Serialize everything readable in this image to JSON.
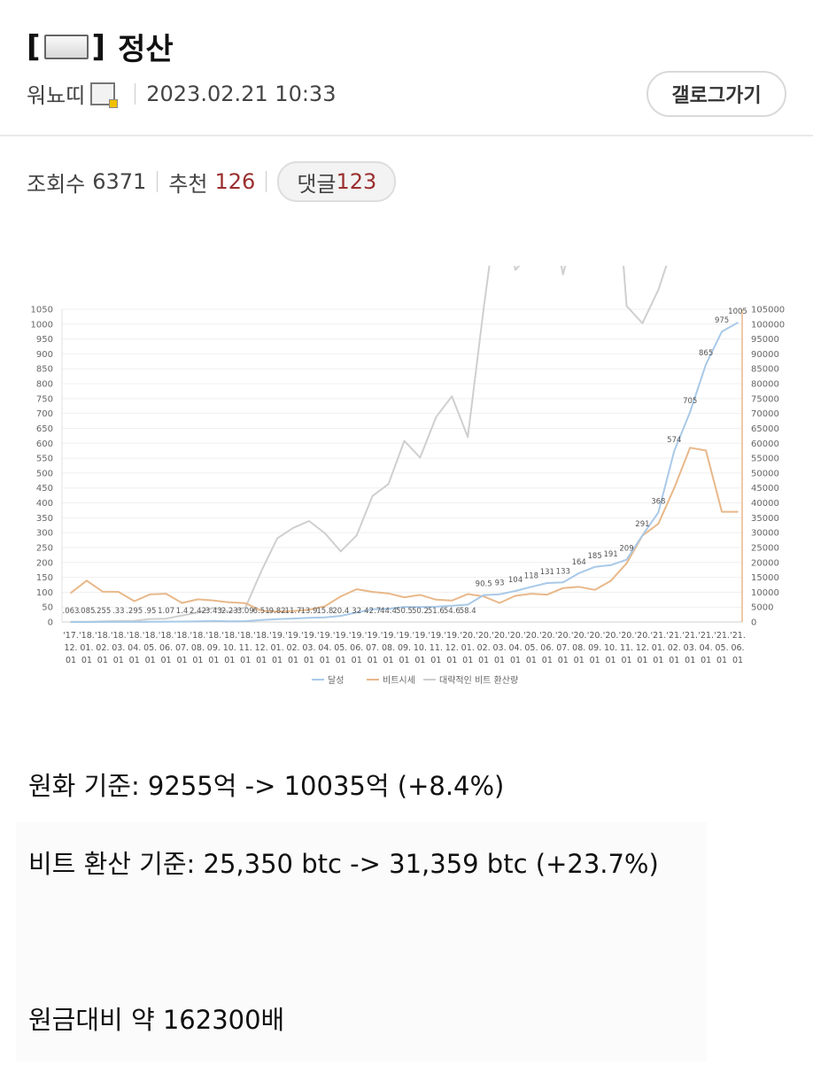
{
  "post": {
    "title": "정산",
    "bracket_open": "[",
    "bracket_close": "]",
    "author": "워뇨띠",
    "datetime": "2023.02.21 10:33",
    "gallery_button": "갤로그가기",
    "views_label": "조회수",
    "views": "6371",
    "recommend_label": "추천",
    "recommend": "126",
    "comments_label": "댓글",
    "comments": "123"
  },
  "chart_data": {
    "type": "line",
    "title": "",
    "y_left": [
      0,
      1050
    ],
    "y_right": [
      0,
      105000
    ],
    "left_ticks": [
      "1050",
      "1000",
      "950",
      "900",
      "850",
      "800",
      "750",
      "700",
      "650",
      "600",
      "550",
      "500",
      "450",
      "400",
      "350",
      "300",
      "250",
      "200",
      "150",
      "100",
      "50",
      "0"
    ],
    "right_ticks": [
      "105000",
      "100000",
      "95000",
      "90000",
      "85000",
      "80000",
      "75000",
      "70000",
      "65000",
      "60000",
      "55000",
      "50000",
      "45000",
      "40000",
      "35000",
      "30000",
      "25000",
      "20000",
      "15000",
      "10000",
      "5000",
      "0"
    ],
    "x_top": [
      "'17.",
      "'18.",
      "'18.",
      "'18.",
      "'18.",
      "'18.",
      "'18.",
      "'18.",
      "'18.",
      "'18.",
      "'18.",
      "'18.",
      "'18.",
      "'19.",
      "'19.",
      "'19.",
      "'19.",
      "'19.",
      "'19.",
      "'19.",
      "'19.",
      "'19.",
      "'19.",
      "'19.",
      "'19.",
      "'20.",
      "'20.",
      "'20.",
      "'20.",
      "'20.",
      "'20.",
      "'20.",
      "'20.",
      "'20.",
      "'20.",
      "'20.",
      "'20.",
      "'21.",
      "'21.",
      "'21.",
      "'21.",
      "'21.",
      "'21."
    ],
    "x_mid": [
      "12.",
      "01.",
      "02.",
      "03.",
      "04.",
      "05.",
      "06.",
      "07.",
      "08.",
      "09.",
      "10.",
      "11.",
      "12.",
      "01.",
      "02.",
      "03.",
      "04.",
      "05.",
      "06.",
      "07.",
      "08.",
      "09.",
      "10.",
      "11.",
      "12.",
      "01.",
      "02.",
      "03.",
      "04.",
      "05.",
      "06.",
      "07.",
      "08.",
      "09.",
      "10.",
      "11.",
      "12.",
      "01.",
      "02.",
      "03.",
      "04.",
      "05.",
      "06."
    ],
    "x_bot": [
      "01",
      "01",
      "01",
      "01",
      "01",
      "01",
      "01",
      "01",
      "01",
      "01",
      "01",
      "01",
      "01",
      "01",
      "01",
      "01",
      "01",
      "01",
      "01",
      "01",
      "01",
      "01",
      "01",
      "01",
      "01",
      "01",
      "01",
      "01",
      "01",
      "01",
      "01",
      "01",
      "01",
      "01",
      "01",
      "01",
      "01",
      "01",
      "01",
      "01",
      "01",
      "01",
      "01"
    ],
    "series": [
      {
        "name": "달성",
        "axis": "left",
        "color": "#a9c9e8",
        "values": [
          0.063,
          0.085,
          0.255,
          0.33,
          0.295,
          0.95,
          1.07,
          1.4,
          2.42,
          3.43,
          2.23,
          3.09,
          6.51,
          9.82,
          11.7,
          13.9,
          15.8,
          20.4,
          32,
          42.7,
          44.4,
          50.5,
          50.2,
          51.6,
          54.6,
          58.4,
          90.5,
          93,
          104,
          118,
          131,
          133,
          164,
          185,
          191,
          209,
          291,
          368,
          574,
          705,
          865,
          975,
          1005
        ],
        "labels": [
          ".063",
          ".085",
          ".255",
          ".33",
          ".295",
          ".95",
          "1.07",
          "1.4",
          "2.42",
          "3.43",
          "2.23",
          "3.09",
          "6.51",
          "9.82",
          "11.7",
          "13.9",
          "15.8",
          "20.4",
          "32",
          "42.7",
          "44.4",
          "50.5",
          "50.2",
          "51.6",
          "54.6",
          "58.4",
          "90.5",
          "93",
          "104",
          "118",
          "131",
          "133",
          "164",
          "185",
          "191",
          "209",
          "291",
          "368",
          "574",
          "705",
          "865",
          "975",
          "1005"
        ]
      },
      {
        "name": "비트시세",
        "axis": "right",
        "color": "#e8b88a",
        "values": [
          9800,
          13900,
          10200,
          10100,
          7000,
          9300,
          9500,
          6400,
          7600,
          7200,
          6600,
          6300,
          3800,
          3500,
          3700,
          4100,
          5300,
          8600,
          11000,
          10100,
          9600,
          8300,
          9100,
          7500,
          7200,
          9400,
          8600,
          6400,
          8800,
          9500,
          9200,
          11400,
          11800,
          10800,
          13800,
          19700,
          29000,
          33000,
          45000,
          58500,
          57600,
          37000,
          37000
        ]
      },
      {
        "name": "대략적인 비트 환산량",
        "axis": "left",
        "color": "#cfcfcf",
        "values": [
          0.6,
          0.6,
          2.5,
          3.3,
          4.2,
          10.2,
          11.3,
          21.9,
          31.8,
          47.6,
          33.8,
          49.0,
          171,
          281,
          316,
          339,
          298,
          237,
          291,
          423,
          463,
          608,
          552,
          688,
          758,
          621,
          1052,
          1453,
          1182,
          1242,
          1424,
          1167,
          1390,
          1713,
          1768,
          1061,
          1003,
          1115,
          1276,
          1205,
          1502,
          2636,
          2716
        ]
      }
    ],
    "legend": [
      "달성",
      "비트시세",
      "대략적인 비트 환산량"
    ]
  },
  "text": {
    "line1": "원화 기준: 9255억 -> 10035억 (+8.4%)",
    "line2": "비트 환산 기준: 25,350 btc -> 31,359 btc (+23.7%)",
    "line3": "원금대비 약 162300배"
  },
  "colors": {
    "blue": "#a9c9e8",
    "orange": "#e8b88a",
    "gray": "#cfcfcf",
    "red_count": "#9b2f2f"
  }
}
